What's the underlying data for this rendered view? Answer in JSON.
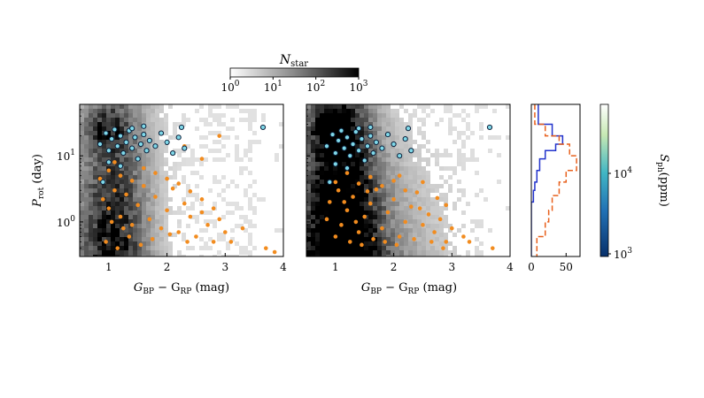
{
  "chart_data": [
    {
      "panel": "left",
      "type": "scatter",
      "xlabel": "G_BP − G_RP (mag)",
      "ylabel": "P_rot (day)",
      "xlim": [
        0.5,
        4.0
      ],
      "ylim": [
        0.3,
        60
      ],
      "yscale": "log",
      "xticks": [
        1,
        2,
        3,
        4
      ],
      "yticks": [
        {
          "value": 1,
          "label": "10^0"
        },
        {
          "value": 10,
          "label": "10^1"
        }
      ],
      "background": "2D histogram of N_star (grey scale, log 1–1000)",
      "series": [
        {
          "role": "orange points",
          "color": "#f28c1f",
          "points": [
            [
              0.9,
              2.2
            ],
            [
              1.0,
              1.6
            ],
            [
              1.1,
              3.0
            ],
            [
              1.2,
              1.2
            ],
            [
              1.3,
              2.6
            ],
            [
              1.4,
              0.9
            ],
            [
              1.5,
              1.8
            ],
            [
              1.6,
              3.5
            ],
            [
              1.7,
              1.1
            ],
            [
              1.8,
              2.4
            ],
            [
              1.9,
              0.8
            ],
            [
              2.0,
              1.5
            ],
            [
              2.1,
              3.2
            ],
            [
              2.2,
              0.7
            ],
            [
              2.3,
              1.9
            ],
            [
              2.4,
              1.2
            ],
            [
              2.5,
              0.6
            ],
            [
              2.6,
              1.4
            ],
            [
              2.7,
              0.9
            ],
            [
              2.8,
              0.5
            ],
            [
              2.9,
              1.1
            ],
            [
              3.0,
              0.7
            ],
            [
              3.1,
              0.5
            ],
            [
              3.3,
              0.8
            ],
            [
              3.7,
              0.4
            ],
            [
              1.0,
              6.0
            ],
            [
              1.2,
              5.0
            ],
            [
              1.4,
              4.2
            ],
            [
              1.6,
              6.5
            ],
            [
              1.8,
              5.5
            ],
            [
              2.0,
              4.5
            ],
            [
              2.2,
              3.8
            ],
            [
              2.4,
              2.9
            ],
            [
              2.6,
              2.2
            ],
            [
              2.8,
              1.6
            ],
            [
              0.95,
              0.5
            ],
            [
              1.15,
              0.4
            ],
            [
              1.35,
              0.6
            ],
            [
              1.55,
              0.45
            ],
            [
              1.75,
              0.55
            ],
            [
              2.05,
              0.65
            ],
            [
              2.35,
              0.5
            ],
            [
              3.85,
              0.35
            ],
            [
              2.9,
              20.0
            ],
            [
              2.6,
              9.0
            ],
            [
              2.3,
              14.0
            ],
            [
              1.1,
              8.0
            ],
            [
              0.85,
              4.5
            ],
            [
              1.05,
              1.0
            ],
            [
              1.25,
              0.8
            ]
          ]
        },
        {
          "role": "cyan points (S_ph)",
          "color": "#7fd8e8",
          "points": [
            [
              0.85,
              15.0
            ],
            [
              0.95,
              22.0
            ],
            [
              1.0,
              12.0
            ],
            [
              1.05,
              18.0
            ],
            [
              1.1,
              25.0
            ],
            [
              1.15,
              14.0
            ],
            [
              1.2,
              20.0
            ],
            [
              1.25,
              11.0
            ],
            [
              1.3,
              16.0
            ],
            [
              1.35,
              24.0
            ],
            [
              1.4,
              13.0
            ],
            [
              1.45,
              19.0
            ],
            [
              1.5,
              9.0
            ],
            [
              1.55,
              15.0
            ],
            [
              1.6,
              21.0
            ],
            [
              1.65,
              12.0
            ],
            [
              1.7,
              17.0
            ],
            [
              1.8,
              14.0
            ],
            [
              1.9,
              22.0
            ],
            [
              2.0,
              16.0
            ],
            [
              2.1,
              11.0
            ],
            [
              2.2,
              19.0
            ],
            [
              2.3,
              13.0
            ],
            [
              1.0,
              8.0
            ],
            [
              1.2,
              7.0
            ],
            [
              0.9,
              4.0
            ],
            [
              1.4,
              26.0
            ],
            [
              1.6,
              28.0
            ],
            [
              2.25,
              27.0
            ],
            [
              3.65,
              27.0
            ]
          ]
        }
      ]
    },
    {
      "panel": "middle",
      "type": "scatter",
      "xlabel": "G_BP − G_RP (mag)",
      "xlim": [
        0.5,
        4.0
      ],
      "ylim": [
        0.3,
        60
      ],
      "yscale": "log",
      "xticks": [
        1,
        2,
        3,
        4
      ],
      "background": "2D histogram of N_star (grey scale, log 1–1000)",
      "series": [
        {
          "role": "orange points",
          "color": "#f28c1f",
          "points": [
            [
              1.0,
              0.6
            ],
            [
              1.1,
              0.9
            ],
            [
              1.2,
              1.5
            ],
            [
              1.3,
              2.4
            ],
            [
              1.4,
              0.7
            ],
            [
              1.5,
              1.2
            ],
            [
              1.6,
              1.9
            ],
            [
              1.7,
              3.1
            ],
            [
              1.8,
              0.8
            ],
            [
              1.9,
              1.4
            ],
            [
              2.0,
              2.2
            ],
            [
              2.1,
              0.6
            ],
            [
              2.2,
              1.0
            ],
            [
              2.3,
              1.7
            ],
            [
              2.4,
              2.8
            ],
            [
              2.5,
              0.9
            ],
            [
              2.6,
              1.3
            ],
            [
              2.7,
              0.7
            ],
            [
              2.8,
              1.1
            ],
            [
              2.9,
              0.5
            ],
            [
              3.0,
              0.8
            ],
            [
              3.2,
              0.6
            ],
            [
              3.7,
              0.4
            ],
            [
              1.0,
              4.0
            ],
            [
              1.2,
              5.5
            ],
            [
              1.4,
              3.8
            ],
            [
              1.6,
              4.8
            ],
            [
              1.8,
              3.5
            ],
            [
              2.0,
              4.2
            ],
            [
              2.2,
              3.0
            ],
            [
              0.9,
              2.0
            ],
            [
              1.05,
              3.0
            ],
            [
              1.25,
              0.5
            ],
            [
              1.45,
              0.45
            ],
            [
              1.65,
              0.55
            ],
            [
              1.85,
              0.5
            ],
            [
              2.05,
              0.45
            ],
            [
              2.35,
              0.55
            ],
            [
              2.65,
              0.5
            ],
            [
              2.85,
              0.4
            ],
            [
              0.85,
              1.1
            ],
            [
              1.15,
              2.0
            ],
            [
              1.35,
              1.0
            ],
            [
              1.55,
              2.9
            ],
            [
              2.45,
              1.6
            ],
            [
              2.75,
              2.3
            ],
            [
              3.3,
              0.5
            ],
            [
              2.9,
              1.8
            ],
            [
              2.1,
              5.0
            ],
            [
              2.5,
              4.0
            ]
          ]
        },
        {
          "role": "cyan points (S_ph)",
          "color": "#7fd8e8",
          "points": [
            [
              0.85,
              14.0
            ],
            [
              0.95,
              21.0
            ],
            [
              1.0,
              11.0
            ],
            [
              1.05,
              17.0
            ],
            [
              1.1,
              24.0
            ],
            [
              1.15,
              13.0
            ],
            [
              1.2,
              19.0
            ],
            [
              1.25,
              10.0
            ],
            [
              1.3,
              15.0
            ],
            [
              1.35,
              23.0
            ],
            [
              1.4,
              12.0
            ],
            [
              1.45,
              18.0
            ],
            [
              1.5,
              8.5
            ],
            [
              1.55,
              14.0
            ],
            [
              1.6,
              20.0
            ],
            [
              1.65,
              11.0
            ],
            [
              1.7,
              16.0
            ],
            [
              1.8,
              13.0
            ],
            [
              1.9,
              21.0
            ],
            [
              2.0,
              15.0
            ],
            [
              2.1,
              10.0
            ],
            [
              2.2,
              18.0
            ],
            [
              2.3,
              12.0
            ],
            [
              1.0,
              7.5
            ],
            [
              1.2,
              6.5
            ],
            [
              0.9,
              4.0
            ],
            [
              1.4,
              26.0
            ],
            [
              1.6,
              27.0
            ],
            [
              2.25,
              26.0
            ],
            [
              3.65,
              27.0
            ]
          ]
        }
      ]
    },
    {
      "panel": "right",
      "type": "histogram",
      "orientation": "horizontal",
      "xlim": [
        0,
        70
      ],
      "xticks": [
        0,
        50
      ],
      "ylim": [
        0.3,
        60
      ],
      "yscale": "log",
      "series": [
        {
          "role": "solid",
          "color": "#2233cc",
          "style": "solid",
          "bins": [
            [
              30,
              60,
              10
            ],
            [
              20,
              30,
              30
            ],
            [
              15,
              20,
              45
            ],
            [
              12,
              15,
              35
            ],
            [
              9,
              12,
              20
            ],
            [
              6,
              9,
              12
            ],
            [
              4,
              6,
              8
            ],
            [
              3,
              4,
              5
            ],
            [
              2,
              3,
              3
            ],
            [
              0.3,
              2,
              0
            ]
          ]
        },
        {
          "role": "dashed",
          "color": "#e8601c",
          "style": "dashed",
          "bins": [
            [
              30,
              60,
              5
            ],
            [
              20,
              30,
              20
            ],
            [
              15,
              20,
              40
            ],
            [
              10,
              15,
              55
            ],
            [
              6,
              10,
              65
            ],
            [
              4,
              6,
              50
            ],
            [
              2.5,
              4,
              40
            ],
            [
              1.5,
              2.5,
              30
            ],
            [
              1,
              1.5,
              25
            ],
            [
              0.6,
              1,
              20
            ],
            [
              0.3,
              0.6,
              8
            ]
          ]
        }
      ]
    }
  ],
  "colorbar_top": {
    "label": "N",
    "label_sub": "star",
    "ticks": [
      {
        "value": 1,
        "label_base": "10",
        "label_exp": "0"
      },
      {
        "value": 10,
        "label_base": "10",
        "label_exp": "1"
      },
      {
        "value": 100,
        "label_base": "10",
        "label_exp": "2"
      },
      {
        "value": 1000,
        "label_base": "10",
        "label_exp": "3"
      }
    ]
  },
  "colorbar_right": {
    "label": "S",
    "label_sub": "ph",
    "label_unit": "(ppm)",
    "ticks": [
      {
        "value": 1000,
        "label_base": "10",
        "label_exp": "3"
      },
      {
        "value": 10000,
        "label_base": "10",
        "label_exp": "4"
      }
    ],
    "colors": [
      "#08306b",
      "#2171b5",
      "#41b6c4",
      "#a1dab4",
      "#ffffff"
    ]
  },
  "labels": {
    "xlabel_left": [
      "G",
      "BP",
      " − G",
      "RP",
      " (mag)"
    ],
    "xlabel_mid": [
      "G",
      "BP",
      " − G",
      "RP",
      " (mag)"
    ],
    "ylabel": [
      "P",
      "rot",
      " (day)"
    ]
  }
}
